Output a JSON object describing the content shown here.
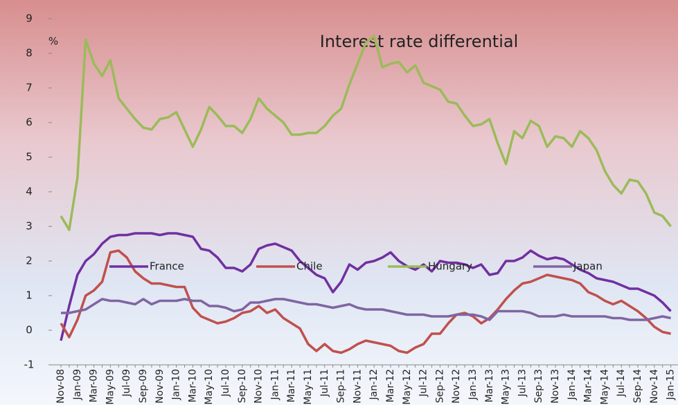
{
  "chart_data": {
    "type": "line",
    "title": "Interest rate differential",
    "y_label": "%",
    "categories": [
      "Nov-08",
      null,
      "Jan-09",
      null,
      "Mar-09",
      null,
      "May-09",
      null,
      "Jul-09",
      null,
      "Sep-09",
      null,
      "Nov-09",
      null,
      "Jan-10",
      null,
      "Mar-10",
      null,
      "May-10",
      null,
      "Jul-10",
      null,
      "Sep-10",
      null,
      "Nov-10",
      null,
      "Jan-11",
      null,
      "Mar-11",
      null,
      "May-11",
      null,
      "Jul-11",
      null,
      "Sep-11",
      null,
      "Nov-11",
      null,
      "Jan-12",
      null,
      "Mar-12",
      null,
      "May-12",
      null,
      "Jul-12",
      null,
      "Sep-12",
      null,
      "Nov-12",
      null,
      "Jan-13",
      null,
      "Mar-13",
      null,
      "May-13",
      null,
      "Jul-13",
      null,
      "Sep-13",
      null,
      "Nov-13",
      null,
      "Jan-14",
      null,
      "Mar-14",
      null,
      "May-14",
      null,
      "Jul-14",
      null,
      "Sep-14",
      null,
      "Nov-14",
      null,
      "Jan-15"
    ],
    "series": [
      {
        "name": "France",
        "color": "#7030a0",
        "values": [
          -0.3,
          0.7,
          1.6,
          2.0,
          2.2,
          2.5,
          2.7,
          2.75,
          2.75,
          2.8,
          2.8,
          2.8,
          2.75,
          2.8,
          2.8,
          2.75,
          2.7,
          2.35,
          2.3,
          2.1,
          1.8,
          1.8,
          1.7,
          1.9,
          2.35,
          2.45,
          2.5,
          2.4,
          2.3,
          2.0,
          1.8,
          1.6,
          1.5,
          1.1,
          1.4,
          1.9,
          1.75,
          1.95,
          2.0,
          2.1,
          2.25,
          2.0,
          1.85,
          1.75,
          1.9,
          1.7,
          2.0,
          1.95,
          1.95,
          1.9,
          1.8,
          1.9,
          1.6,
          1.65,
          2.0,
          2.0,
          2.1,
          2.3,
          2.15,
          2.05,
          2.1,
          2.05,
          1.9,
          1.75,
          1.65,
          1.5,
          1.45,
          1.4,
          1.3,
          1.2,
          1.2,
          1.1,
          1.0,
          0.8,
          0.55
        ]
      },
      {
        "name": "Chile",
        "color": "#c0504d",
        "values": [
          0.2,
          -0.2,
          0.3,
          1.0,
          1.15,
          1.4,
          2.25,
          2.3,
          2.1,
          1.7,
          1.5,
          1.35,
          1.35,
          1.3,
          1.25,
          1.25,
          0.65,
          0.4,
          0.3,
          0.2,
          0.25,
          0.35,
          0.5,
          0.55,
          0.7,
          0.5,
          0.6,
          0.35,
          0.2,
          0.05,
          -0.4,
          -0.6,
          -0.4,
          -0.6,
          -0.65,
          -0.55,
          -0.4,
          -0.3,
          -0.35,
          -0.4,
          -0.45,
          -0.6,
          -0.65,
          -0.5,
          -0.4,
          -0.1,
          -0.1,
          0.2,
          0.45,
          0.5,
          0.4,
          0.2,
          0.35,
          0.6,
          0.9,
          1.15,
          1.35,
          1.4,
          1.5,
          1.6,
          1.55,
          1.5,
          1.45,
          1.35,
          1.1,
          1.0,
          0.85,
          0.75,
          0.85,
          0.7,
          0.55,
          0.35,
          0.1,
          -0.05,
          -0.1
        ]
      },
      {
        "name": "Hungary",
        "color": "#9bbb59",
        "values": [
          3.3,
          2.9,
          4.4,
          8.4,
          7.7,
          7.35,
          7.8,
          6.7,
          6.4,
          6.1,
          5.85,
          5.8,
          6.1,
          6.15,
          6.3,
          5.8,
          5.3,
          5.8,
          6.45,
          6.2,
          5.9,
          5.9,
          5.7,
          6.1,
          6.7,
          6.4,
          6.2,
          6.0,
          5.65,
          5.65,
          5.7,
          5.7,
          5.9,
          6.2,
          6.4,
          7.1,
          7.7,
          8.3,
          8.5,
          7.6,
          7.7,
          7.75,
          7.45,
          7.65,
          7.15,
          7.05,
          6.95,
          6.6,
          6.55,
          6.2,
          5.9,
          5.95,
          6.1,
          5.4,
          4.8,
          5.75,
          5.55,
          6.05,
          5.9,
          5.3,
          5.6,
          5.55,
          5.3,
          5.75,
          5.55,
          5.2,
          4.6,
          4.2,
          3.95,
          4.35,
          4.3,
          3.95,
          3.4,
          3.3,
          3.0
        ]
      },
      {
        "name": "Japan",
        "color": "#8064a2",
        "values": [
          0.5,
          0.5,
          0.55,
          0.6,
          0.75,
          0.9,
          0.85,
          0.85,
          0.8,
          0.75,
          0.9,
          0.75,
          0.85,
          0.85,
          0.85,
          0.9,
          0.85,
          0.85,
          0.7,
          0.7,
          0.65,
          0.55,
          0.6,
          0.8,
          0.8,
          0.85,
          0.9,
          0.9,
          0.85,
          0.8,
          0.75,
          0.75,
          0.7,
          0.65,
          0.7,
          0.75,
          0.65,
          0.6,
          0.6,
          0.6,
          0.55,
          0.5,
          0.45,
          0.45,
          0.45,
          0.4,
          0.4,
          0.4,
          0.45,
          0.45,
          0.45,
          0.4,
          0.3,
          0.55,
          0.55,
          0.55,
          0.55,
          0.5,
          0.4,
          0.4,
          0.4,
          0.45,
          0.4,
          0.4,
          0.4,
          0.4,
          0.4,
          0.35,
          0.35,
          0.3,
          0.3,
          0.3,
          0.35,
          0.4,
          0.35
        ]
      }
    ],
    "ylim": [
      -1,
      9
    ],
    "yticks": [
      -1,
      0,
      1,
      2,
      3,
      4,
      5,
      6,
      7,
      8,
      9
    ],
    "grid": false,
    "legend": "center"
  }
}
